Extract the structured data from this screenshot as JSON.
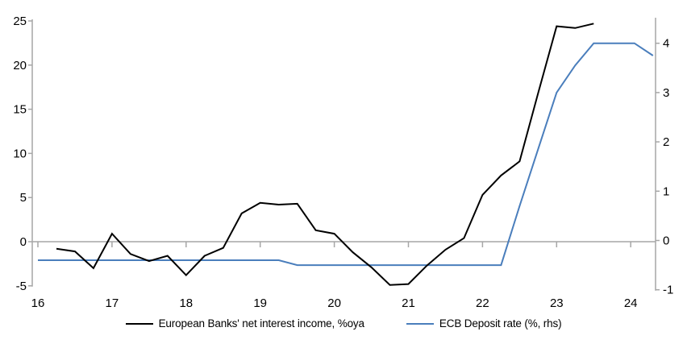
{
  "chart_data": {
    "type": "line",
    "title": "",
    "xlabel": "",
    "x_axis": {
      "min": 15.93,
      "max": 24.45,
      "ticks": [
        16,
        17,
        18,
        19,
        20,
        21,
        22,
        23,
        24
      ]
    },
    "left_axis": {
      "min": -5,
      "max": 25,
      "ticks": [
        25,
        20,
        15,
        10,
        5,
        0,
        -5
      ]
    },
    "right_axis": {
      "min": -1,
      "max": 4.55,
      "ticks": [
        4,
        3,
        2,
        1,
        0,
        -1
      ]
    },
    "grid": "zero-line-only",
    "legend_position": "bottom",
    "series": [
      {
        "name": "European Banks' net interest income, %oya",
        "axis": "left",
        "color": "#000000",
        "points": [
          [
            16.25,
            -0.8
          ],
          [
            16.5,
            -1.1
          ],
          [
            16.75,
            -3.0
          ],
          [
            17.0,
            0.9
          ],
          [
            17.25,
            -1.4
          ],
          [
            17.5,
            -2.2
          ],
          [
            17.75,
            -1.6
          ],
          [
            18.0,
            -3.8
          ],
          [
            18.25,
            -1.6
          ],
          [
            18.5,
            -0.7
          ],
          [
            18.75,
            3.2
          ],
          [
            19.0,
            4.4
          ],
          [
            19.25,
            4.2
          ],
          [
            19.5,
            4.3
          ],
          [
            19.75,
            1.3
          ],
          [
            20.0,
            0.9
          ],
          [
            20.25,
            -1.2
          ],
          [
            20.5,
            -2.9
          ],
          [
            20.75,
            -4.9
          ],
          [
            21.0,
            -4.8
          ],
          [
            21.25,
            -2.7
          ],
          [
            21.5,
            -0.9
          ],
          [
            21.75,
            0.4
          ],
          [
            22.0,
            5.3
          ],
          [
            22.25,
            7.5
          ],
          [
            22.5,
            9.1
          ],
          [
            22.75,
            16.8
          ],
          [
            23.0,
            24.4
          ],
          [
            23.25,
            24.2
          ],
          [
            23.5,
            24.7
          ]
        ]
      },
      {
        "name": "ECB Deposit rate (%, rhs)",
        "axis": "right",
        "color": "#4A7EBC",
        "points": [
          [
            16.0,
            -0.4
          ],
          [
            16.25,
            -0.4
          ],
          [
            16.5,
            -0.4
          ],
          [
            16.75,
            -0.4
          ],
          [
            17.0,
            -0.4
          ],
          [
            17.25,
            -0.4
          ],
          [
            17.5,
            -0.4
          ],
          [
            17.75,
            -0.4
          ],
          [
            18.0,
            -0.4
          ],
          [
            18.25,
            -0.4
          ],
          [
            18.5,
            -0.4
          ],
          [
            18.75,
            -0.4
          ],
          [
            19.0,
            -0.4
          ],
          [
            19.25,
            -0.4
          ],
          [
            19.5,
            -0.5
          ],
          [
            19.75,
            -0.5
          ],
          [
            20.0,
            -0.5
          ],
          [
            20.25,
            -0.5
          ],
          [
            20.5,
            -0.5
          ],
          [
            20.75,
            -0.5
          ],
          [
            21.0,
            -0.5
          ],
          [
            21.25,
            -0.5
          ],
          [
            21.5,
            -0.5
          ],
          [
            21.75,
            -0.5
          ],
          [
            22.0,
            -0.5
          ],
          [
            22.25,
            -0.5
          ],
          [
            22.5,
            0.7
          ],
          [
            22.75,
            1.85
          ],
          [
            23.0,
            3.0
          ],
          [
            23.25,
            3.55
          ],
          [
            23.5,
            4.0
          ],
          [
            23.75,
            4.0
          ],
          [
            24.0,
            4.0
          ],
          [
            24.05,
            4.0
          ],
          [
            24.3,
            3.75
          ]
        ]
      }
    ]
  },
  "colors": {
    "axis_line": "#A6A6A6",
    "zero_line": "#A6A6A6",
    "tick_text": "#000000"
  }
}
